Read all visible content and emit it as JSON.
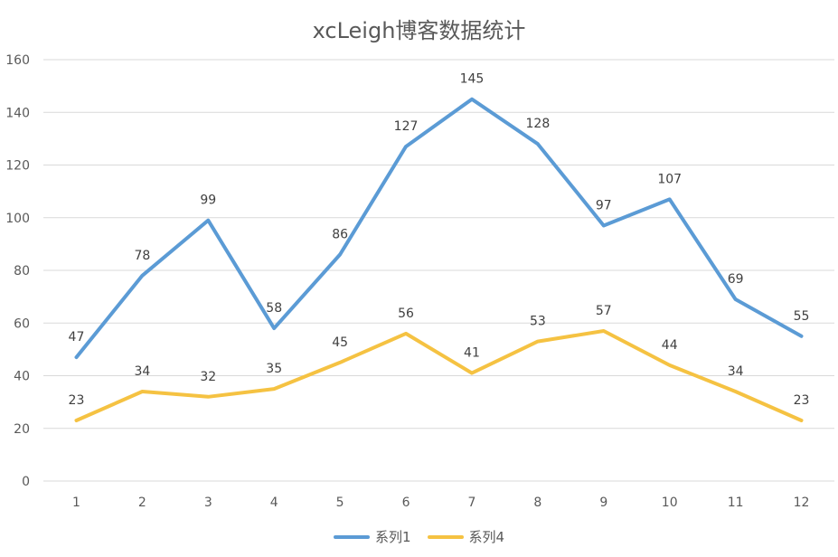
{
  "chart_data": {
    "type": "line",
    "title": "xcLeigh博客数据统计",
    "xlabel": "",
    "ylabel": "",
    "x": [
      1,
      2,
      3,
      4,
      5,
      6,
      7,
      8,
      9,
      10,
      11,
      12
    ],
    "ylim": [
      0,
      160
    ],
    "yticks": [
      0,
      20,
      40,
      60,
      80,
      100,
      120,
      140,
      160
    ],
    "grid": true,
    "legend_position": "bottom",
    "series": [
      {
        "name": "系列1",
        "color": "#5b9bd5",
        "values": [
          47,
          78,
          99,
          58,
          86,
          127,
          145,
          128,
          97,
          107,
          69,
          55
        ]
      },
      {
        "name": "系列4",
        "color": "#f5c242",
        "values": [
          23,
          34,
          32,
          35,
          45,
          56,
          41,
          53,
          57,
          44,
          34,
          23
        ]
      }
    ]
  }
}
